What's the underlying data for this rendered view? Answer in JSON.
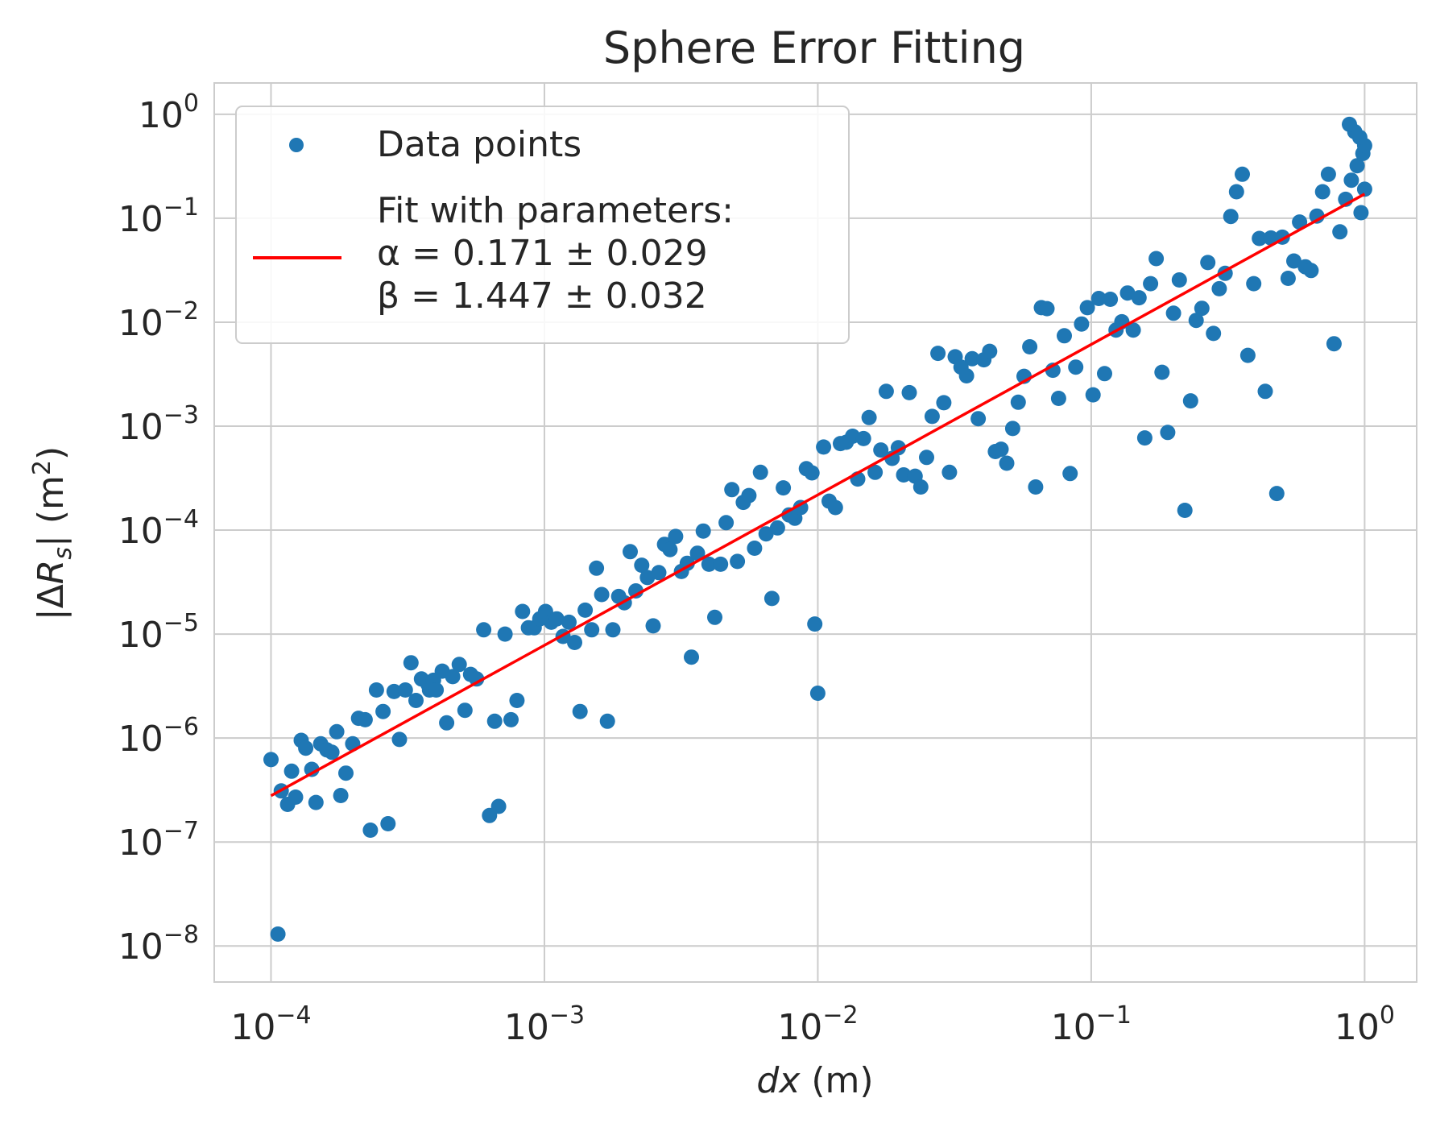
{
  "chart_data": {
    "type": "scatter",
    "title": "Sphere Error Fitting",
    "xlabel": "dx (m)",
    "ylabel": "|ΔRs| (m2)",
    "xscale": "log",
    "yscale": "log",
    "xlim": [
      6.2e-05,
      1.55
    ],
    "ylim": [
      4.5e-09,
      2.0
    ],
    "xticks": [
      {
        "value": 0.0001,
        "label": "10",
        "exp": "−4"
      },
      {
        "value": 0.001,
        "label": "10",
        "exp": "−3"
      },
      {
        "value": 0.01,
        "label": "10",
        "exp": "−2"
      },
      {
        "value": 0.1,
        "label": "10",
        "exp": "−1"
      },
      {
        "value": 1,
        "label": "10",
        "exp": "0"
      }
    ],
    "yticks": [
      {
        "value": 1e-08,
        "label": "10",
        "exp": "−8"
      },
      {
        "value": 1e-07,
        "label": "10",
        "exp": "−7"
      },
      {
        "value": 1e-06,
        "label": "10",
        "exp": "−6"
      },
      {
        "value": 1e-05,
        "label": "10",
        "exp": "−5"
      },
      {
        "value": 0.0001,
        "label": "10",
        "exp": "−4"
      },
      {
        "value": 0.001,
        "label": "10",
        "exp": "−3"
      },
      {
        "value": 0.01,
        "label": "10",
        "exp": "−2"
      },
      {
        "value": 0.1,
        "label": "10",
        "exp": "−1"
      },
      {
        "value": 1,
        "label": "10",
        "exp": "0"
      }
    ],
    "grid": true,
    "legend_position": "top-left",
    "legend": [
      {
        "label": "Data points",
        "marker": "dot"
      },
      {
        "label": "Fit with parameters:\nα = 0.171 ± 0.029\nβ = 1.447 ± 0.032",
        "marker": "line"
      }
    ],
    "colors": {
      "points": "#1f77b4",
      "fit": "#ff0000",
      "grid": "#cccccc"
    },
    "series": [
      {
        "name": "Data points",
        "kind": "scatter",
        "points": [
          [
            0.0001,
            6.2e-07
          ],
          [
            0.000106,
            1.3e-08
          ],
          [
            0.000109,
            3.1e-07
          ],
          [
            0.000115,
            2.3e-07
          ],
          [
            0.000119,
            4.8e-07
          ],
          [
            0.000123,
            2.7e-07
          ],
          [
            0.000129,
            9.5e-07
          ],
          [
            0.000134,
            8e-07
          ],
          [
            0.000141,
            5e-07
          ],
          [
            0.000146,
            2.4e-07
          ],
          [
            0.000152,
            8.8e-07
          ],
          [
            0.00016,
            7.7e-07
          ],
          [
            0.000167,
            7.3e-07
          ],
          [
            0.000174,
            1.15e-06
          ],
          [
            0.00018,
            2.8e-07
          ],
          [
            0.000188,
            4.6e-07
          ],
          [
            0.000199,
            8.8e-07
          ],
          [
            0.000209,
            1.55e-06
          ],
          [
            0.000221,
            1.5e-06
          ],
          [
            0.000231,
            1.3e-07
          ],
          [
            0.000243,
            2.9e-06
          ],
          [
            0.000257,
            1.8e-06
          ],
          [
            0.000268,
            1.5e-07
          ],
          [
            0.000282,
            2.8e-06
          ],
          [
            0.000295,
            9.7e-07
          ],
          [
            0.00031,
            2.9e-06
          ],
          [
            0.000325,
            5.3e-06
          ],
          [
            0.000339,
            2.3e-06
          ],
          [
            0.000355,
            3.7e-06
          ],
          [
            0.000375,
            3.3e-06
          ],
          [
            0.00038,
            2.9e-06
          ],
          [
            0.000393,
            3.6e-06
          ],
          [
            0.000402,
            2.9e-06
          ],
          [
            0.000423,
            4.4e-06
          ],
          [
            0.000439,
            1.4e-06
          ],
          [
            0.000462,
            3.9e-06
          ],
          [
            0.000488,
            5.1e-06
          ],
          [
            0.000512,
            1.85e-06
          ],
          [
            0.000537,
            4.1e-06
          ],
          [
            0.000565,
            3.7e-06
          ],
          [
            0.0006,
            1.1e-05
          ],
          [
            0.00063,
            1.8e-07
          ],
          [
            0.000658,
            1.45e-06
          ],
          [
            0.00068,
            2.2e-07
          ],
          [
            0.000718,
            1e-05
          ],
          [
            0.000755,
            1.5e-06
          ],
          [
            0.000794,
            2.3e-06
          ],
          [
            0.000832,
            1.65e-05
          ],
          [
            0.000874,
            1.15e-05
          ],
          [
            0.000918,
            1.15e-05
          ],
          [
            0.000962,
            1.4e-05
          ],
          [
            0.00101,
            1.65e-05
          ],
          [
            0.00106,
            1.3e-05
          ],
          [
            0.00111,
            1.4e-05
          ],
          [
            0.00117,
            9.5e-06
          ],
          [
            0.00123,
            1.3e-05
          ],
          [
            0.00129,
            8.3e-06
          ],
          [
            0.00135,
            1.8e-06
          ],
          [
            0.00141,
            1.7e-05
          ],
          [
            0.00149,
            1.1e-05
          ],
          [
            0.00155,
            4.3e-05
          ],
          [
            0.00162,
            2.4e-05
          ],
          [
            0.0017,
            1.45e-06
          ],
          [
            0.00178,
            1.1e-05
          ],
          [
            0.00187,
            2.3e-05
          ],
          [
            0.00196,
            2e-05
          ],
          [
            0.00206,
            6.2e-05
          ],
          [
            0.00216,
            2.6e-05
          ],
          [
            0.00227,
            4.6e-05
          ],
          [
            0.00238,
            3.5e-05
          ],
          [
            0.0025,
            1.2e-05
          ],
          [
            0.00262,
            3.9e-05
          ],
          [
            0.00275,
            7.3e-05
          ],
          [
            0.00288,
            6.5e-05
          ],
          [
            0.00302,
            8.7e-05
          ],
          [
            0.00317,
            4e-05
          ],
          [
            0.00333,
            4.8e-05
          ],
          [
            0.00345,
            6e-06
          ],
          [
            0.00363,
            6e-05
          ],
          [
            0.00381,
            9.8e-05
          ],
          [
            0.004,
            4.7e-05
          ],
          [
            0.0042,
            1.45e-05
          ],
          [
            0.00441,
            4.7e-05
          ],
          [
            0.00462,
            0.000118
          ],
          [
            0.00485,
            0.000245
          ],
          [
            0.00508,
            5e-05
          ],
          [
            0.00534,
            0.000185
          ],
          [
            0.0056,
            0.000215
          ],
          [
            0.00587,
            6.7e-05
          ],
          [
            0.00617,
            0.00036
          ],
          [
            0.00647,
            9.2e-05
          ],
          [
            0.00679,
            2.2e-05
          ],
          [
            0.00712,
            0.000105
          ],
          [
            0.00748,
            0.000255
          ],
          [
            0.00785,
            0.00014
          ],
          [
            0.00824,
            0.00013
          ],
          [
            0.00865,
            0.000165
          ],
          [
            0.00908,
            0.00039
          ],
          [
            0.00952,
            0.000355
          ],
          [
            0.00975,
            1.25e-05
          ],
          [
            0.01,
            2.7e-06
          ],
          [
            0.0105,
            0.00063
          ],
          [
            0.011,
            0.00019
          ],
          [
            0.0116,
            0.000165
          ],
          [
            0.0121,
            0.00068
          ],
          [
            0.0127,
            0.0007
          ],
          [
            0.0134,
            0.0008
          ],
          [
            0.014,
            0.00031
          ],
          [
            0.0147,
            0.00076
          ],
          [
            0.0154,
            0.00121
          ],
          [
            0.0162,
            0.00036
          ],
          [
            0.017,
            0.00059
          ],
          [
            0.0178,
            0.00216
          ],
          [
            0.0187,
            0.00049
          ],
          [
            0.0197,
            0.00062
          ],
          [
            0.0206,
            0.00034
          ],
          [
            0.0216,
            0.0021
          ],
          [
            0.0227,
            0.00033
          ],
          [
            0.0238,
            0.00026
          ],
          [
            0.025,
            0.0005
          ],
          [
            0.0262,
            0.00124
          ],
          [
            0.0275,
            0.00502
          ],
          [
            0.0289,
            0.00168
          ],
          [
            0.0303,
            0.00036
          ],
          [
            0.0318,
            0.00465
          ],
          [
            0.0334,
            0.0037
          ],
          [
            0.035,
            0.00305
          ],
          [
            0.0367,
            0.00445
          ],
          [
            0.0386,
            0.00118
          ],
          [
            0.0405,
            0.00435
          ],
          [
            0.0425,
            0.00525
          ],
          [
            0.0446,
            0.00057
          ],
          [
            0.0468,
            0.0006
          ],
          [
            0.0491,
            0.00044
          ],
          [
            0.0516,
            0.00095
          ],
          [
            0.0541,
            0.0017
          ],
          [
            0.0568,
            0.00302
          ],
          [
            0.0596,
            0.0058
          ],
          [
            0.0626,
            0.00026
          ],
          [
            0.0657,
            0.0138
          ],
          [
            0.0689,
            0.0135
          ],
          [
            0.0724,
            0.00345
          ],
          [
            0.076,
            0.00185
          ],
          [
            0.0797,
            0.0074
          ],
          [
            0.0837,
            0.00035
          ],
          [
            0.0878,
            0.0037
          ],
          [
            0.0922,
            0.0096
          ],
          [
            0.0968,
            0.0138
          ],
          [
            0.1016,
            0.002
          ],
          [
            0.1066,
            0.0169
          ],
          [
            0.1119,
            0.0032
          ],
          [
            0.1174,
            0.0166
          ],
          [
            0.1232,
            0.0084
          ],
          [
            0.1294,
            0.0101
          ],
          [
            0.1358,
            0.0191
          ],
          [
            0.1425,
            0.0084
          ],
          [
            0.1496,
            0.0172
          ],
          [
            0.157,
            0.00077
          ],
          [
            0.1648,
            0.0235
          ],
          [
            0.1729,
            0.0409
          ],
          [
            0.1815,
            0.0033
          ],
          [
            0.1905,
            0.00087
          ],
          [
            0.2,
            0.0122
          ],
          [
            0.21,
            0.0255
          ],
          [
            0.22,
            0.000155
          ],
          [
            0.231,
            0.00175
          ],
          [
            0.242,
            0.0104
          ],
          [
            0.254,
            0.0136
          ],
          [
            0.267,
            0.0375
          ],
          [
            0.28,
            0.0078
          ],
          [
            0.294,
            0.021
          ],
          [
            0.309,
            0.0295
          ],
          [
            0.324,
            0.104
          ],
          [
            0.34,
            0.18
          ],
          [
            0.357,
            0.265
          ],
          [
            0.374,
            0.0048
          ],
          [
            0.393,
            0.0235
          ],
          [
            0.412,
            0.0639
          ],
          [
            0.433,
            0.00216
          ],
          [
            0.454,
            0.0646
          ],
          [
            0.477,
            0.000225
          ],
          [
            0.5,
            0.0657
          ],
          [
            0.525,
            0.0264
          ],
          [
            0.551,
            0.0388
          ],
          [
            0.578,
            0.092
          ],
          [
            0.607,
            0.0341
          ],
          [
            0.637,
            0.0314
          ],
          [
            0.669,
            0.105
          ],
          [
            0.702,
            0.18
          ],
          [
            0.737,
            0.265
          ],
          [
            0.773,
            0.0062
          ],
          [
            0.812,
            0.074
          ],
          [
            0.852,
            0.152
          ],
          [
            0.894,
            0.232
          ],
          [
            0.939,
            0.32
          ],
          [
            0.985,
            0.42
          ],
          [
            1.0,
            0.5
          ],
          [
            0.96,
            0.6
          ],
          [
            0.92,
            0.68
          ],
          [
            0.88,
            0.8
          ],
          [
            0.97,
            0.113
          ],
          [
            1.0,
            0.19
          ]
        ]
      },
      {
        "name": "Fit with parameters:\nα = 0.171 ± 0.029\nβ = 1.447 ± 0.032",
        "kind": "line",
        "alpha": 0.171,
        "beta": 1.447,
        "x_range": [
          0.0001,
          1.0
        ]
      }
    ]
  }
}
